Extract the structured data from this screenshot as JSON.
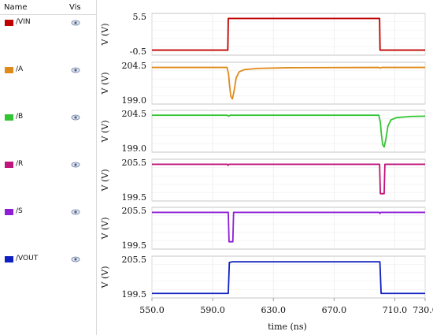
{
  "legend": {
    "header_name": "Name",
    "header_vis": "Vis",
    "items": [
      {
        "label": "/VIN",
        "color": "#c00000",
        "icon": "eye-icon"
      },
      {
        "label": "/A",
        "color": "#e08a1a",
        "icon": "eye-icon"
      },
      {
        "label": "/B",
        "color": "#33c433",
        "icon": "eye-icon"
      },
      {
        "label": "/R",
        "color": "#c0157a",
        "icon": "eye-icon"
      },
      {
        "label": "/S",
        "color": "#8e1ed6",
        "icon": "eye-icon"
      },
      {
        "label": "/VOUT",
        "color": "#1020c0",
        "icon": "eye-icon"
      }
    ]
  },
  "chart_data": {
    "type": "line",
    "title": "",
    "xlabel": "time (ns)",
    "xlim": [
      550.0,
      730.0
    ],
    "xticks": [
      "550.0",
      "590.0",
      "630.0",
      "670.0",
      "710.0",
      "730.0"
    ],
    "xtick_values": [
      550,
      590,
      630,
      670,
      710,
      730
    ],
    "grid": true,
    "panels": [
      {
        "name": "/VIN",
        "ylabel": "V (V)",
        "ytick_top": "5.5",
        "ytick_bottom": "-0.5",
        "ylim": [
          -0.5,
          5.5
        ],
        "color": "#c00000",
        "points": [
          [
            550,
            -0.3
          ],
          [
            600.0,
            -0.3
          ],
          [
            600.3,
            5.3
          ],
          [
            700.0,
            5.3
          ],
          [
            700.3,
            -0.3
          ],
          [
            730,
            -0.3
          ]
        ]
      },
      {
        "name": "/A",
        "ylabel": "V (V)",
        "ytick_top": "204.5",
        "ytick_bottom": "199.0",
        "ylim": [
          199.0,
          204.5
        ],
        "color": "#e08a1a",
        "points": [
          [
            550,
            204.3
          ],
          [
            599.5,
            204.3
          ],
          [
            600.5,
            203.2
          ],
          [
            601.2,
            201.2
          ],
          [
            602.0,
            199.6
          ],
          [
            603.0,
            199.2
          ],
          [
            604.0,
            200.3
          ],
          [
            605.5,
            202.6
          ],
          [
            607.5,
            203.6
          ],
          [
            611,
            203.95
          ],
          [
            620,
            204.15
          ],
          [
            640,
            204.25
          ],
          [
            699.5,
            204.3
          ],
          [
            700.5,
            204.2
          ],
          [
            701.5,
            204.3
          ],
          [
            730,
            204.3
          ]
        ]
      },
      {
        "name": "/B",
        "ylabel": "V (V)",
        "ytick_top": "204.5",
        "ytick_bottom": "199.0",
        "ylim": [
          199.0,
          204.5
        ],
        "color": "#33c433",
        "points": [
          [
            550,
            204.35
          ],
          [
            599.5,
            204.35
          ],
          [
            600.5,
            204.2
          ],
          [
            601.5,
            204.35
          ],
          [
            699.5,
            204.35
          ],
          [
            700.5,
            203.2
          ],
          [
            701.2,
            201.2
          ],
          [
            702.0,
            199.6
          ],
          [
            703.0,
            199.2
          ],
          [
            704.0,
            200.3
          ],
          [
            705.5,
            202.6
          ],
          [
            707.5,
            203.6
          ],
          [
            711,
            203.95
          ],
          [
            720,
            204.15
          ],
          [
            730,
            204.2
          ]
        ]
      },
      {
        "name": "/R",
        "ylabel": "V (V)",
        "ytick_top": "205.5",
        "ytick_bottom": "199.5",
        "ylim": [
          199.5,
          205.5
        ],
        "color": "#c0157a",
        "points": [
          [
            550,
            205.3
          ],
          [
            599.8,
            205.3
          ],
          [
            600.2,
            205.1
          ],
          [
            600.8,
            205.3
          ],
          [
            700.0,
            205.3
          ],
          [
            700.5,
            200.1
          ],
          [
            703.0,
            200.1
          ],
          [
            703.5,
            205.3
          ],
          [
            730,
            205.3
          ]
        ]
      },
      {
        "name": "/S",
        "ylabel": "V (V)",
        "ytick_top": "205.5",
        "ytick_bottom": "199.5",
        "ylim": [
          199.5,
          205.5
        ],
        "color": "#8e1ed6",
        "points": [
          [
            550,
            205.3
          ],
          [
            600.3,
            205.3
          ],
          [
            600.8,
            200.1
          ],
          [
            603.3,
            200.1
          ],
          [
            603.8,
            205.3
          ],
          [
            699.8,
            205.3
          ],
          [
            700.2,
            205.1
          ],
          [
            700.8,
            205.3
          ],
          [
            730,
            205.3
          ]
        ]
      },
      {
        "name": "/VOUT",
        "ylabel": "V (V)",
        "ytick_top": "205.5",
        "ytick_bottom": "199.5",
        "ylim": [
          199.5,
          205.5
        ],
        "color": "#1020c0",
        "points": [
          [
            550,
            199.6
          ],
          [
            600.3,
            199.6
          ],
          [
            601.0,
            205.1
          ],
          [
            603.0,
            205.2
          ],
          [
            700.2,
            205.2
          ],
          [
            701.0,
            199.6
          ],
          [
            730,
            199.6
          ]
        ]
      }
    ]
  }
}
